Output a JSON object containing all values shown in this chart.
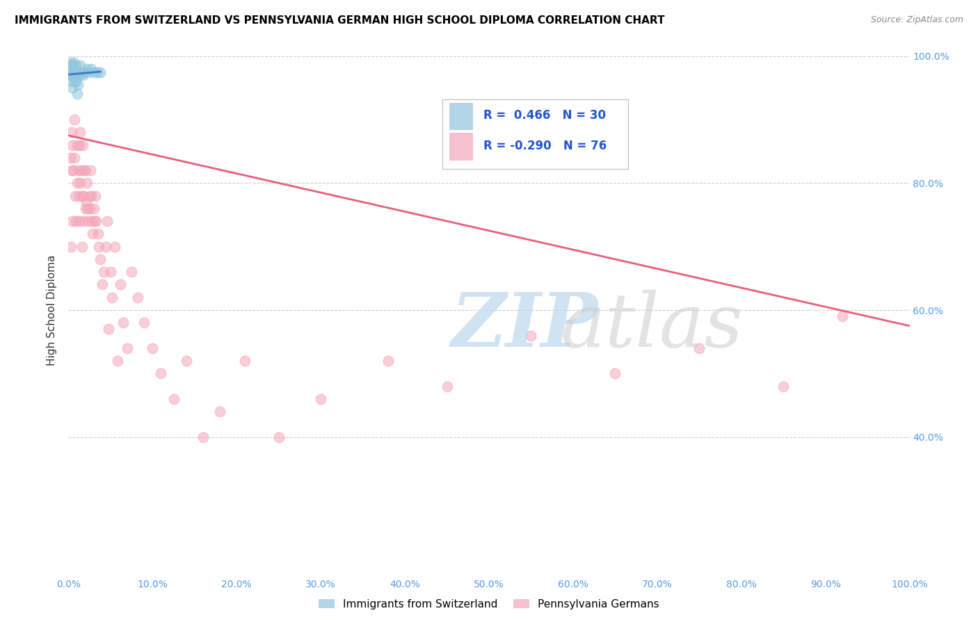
{
  "title": "IMMIGRANTS FROM SWITZERLAND VS PENNSYLVANIA GERMAN HIGH SCHOOL DIPLOMA CORRELATION CHART",
  "source": "Source: ZipAtlas.com",
  "ylabel": "High School Diploma",
  "legend_labels": [
    "Immigrants from Switzerland",
    "Pennsylvania Germans"
  ],
  "r_blue": 0.466,
  "n_blue": 30,
  "r_pink": -0.29,
  "n_pink": 76,
  "blue_color": "#92c5de",
  "pink_color": "#f4a6bb",
  "blue_line_color": "#3a7abf",
  "pink_line_color": "#e8607a",
  "watermark_zip": "ZIP",
  "watermark_atlas": "atlas",
  "xlim": [
    0.0,
    1.0
  ],
  "ylim": [
    0.18,
    1.02
  ],
  "x_ticks": [
    0.0,
    0.1,
    0.2,
    0.3,
    0.4,
    0.5,
    0.6,
    0.7,
    0.8,
    0.9,
    1.0
  ],
  "y_ticks": [
    0.4,
    0.6,
    0.8,
    1.0
  ],
  "blue_x": [
    0.001,
    0.002,
    0.003,
    0.003,
    0.004,
    0.004,
    0.005,
    0.005,
    0.005,
    0.006,
    0.006,
    0.007,
    0.008,
    0.009,
    0.009,
    0.01,
    0.01,
    0.011,
    0.012,
    0.013,
    0.014,
    0.016,
    0.017,
    0.019,
    0.022,
    0.024,
    0.027,
    0.03,
    0.034,
    0.038
  ],
  "blue_y": [
    0.975,
    0.985,
    0.97,
    0.99,
    0.975,
    0.96,
    0.985,
    0.97,
    0.95,
    0.99,
    0.975,
    0.96,
    0.97,
    0.985,
    0.96,
    0.97,
    0.94,
    0.955,
    0.975,
    0.97,
    0.985,
    0.975,
    0.97,
    0.975,
    0.98,
    0.975,
    0.98,
    0.975,
    0.975,
    0.975
  ],
  "pink_x": [
    0.002,
    0.003,
    0.004,
    0.004,
    0.005,
    0.005,
    0.006,
    0.007,
    0.007,
    0.008,
    0.009,
    0.01,
    0.01,
    0.012,
    0.012,
    0.013,
    0.013,
    0.014,
    0.014,
    0.015,
    0.016,
    0.016,
    0.017,
    0.018,
    0.018,
    0.019,
    0.02,
    0.02,
    0.021,
    0.022,
    0.023,
    0.024,
    0.025,
    0.025,
    0.026,
    0.027,
    0.028,
    0.029,
    0.03,
    0.031,
    0.032,
    0.033,
    0.035,
    0.036,
    0.038,
    0.04,
    0.042,
    0.044,
    0.046,
    0.048,
    0.05,
    0.052,
    0.055,
    0.058,
    0.062,
    0.065,
    0.07,
    0.075,
    0.082,
    0.09,
    0.1,
    0.11,
    0.125,
    0.14,
    0.16,
    0.18,
    0.21,
    0.25,
    0.3,
    0.38,
    0.45,
    0.55,
    0.65,
    0.75,
    0.85,
    0.92
  ],
  "pink_y": [
    0.84,
    0.7,
    0.82,
    0.88,
    0.74,
    0.86,
    0.82,
    0.9,
    0.84,
    0.78,
    0.74,
    0.8,
    0.86,
    0.82,
    0.78,
    0.86,
    0.74,
    0.8,
    0.88,
    0.82,
    0.78,
    0.7,
    0.86,
    0.78,
    0.74,
    0.82,
    0.76,
    0.82,
    0.77,
    0.8,
    0.76,
    0.74,
    0.78,
    0.76,
    0.82,
    0.78,
    0.74,
    0.72,
    0.76,
    0.74,
    0.78,
    0.74,
    0.72,
    0.7,
    0.68,
    0.64,
    0.66,
    0.7,
    0.74,
    0.57,
    0.66,
    0.62,
    0.7,
    0.52,
    0.64,
    0.58,
    0.54,
    0.66,
    0.62,
    0.58,
    0.54,
    0.5,
    0.46,
    0.52,
    0.4,
    0.44,
    0.52,
    0.4,
    0.46,
    0.52,
    0.48,
    0.56,
    0.5,
    0.54,
    0.48,
    0.59
  ],
  "pink_line_x": [
    0.0,
    1.0
  ],
  "pink_line_y_start": 0.875,
  "pink_line_y_end": 0.575
}
